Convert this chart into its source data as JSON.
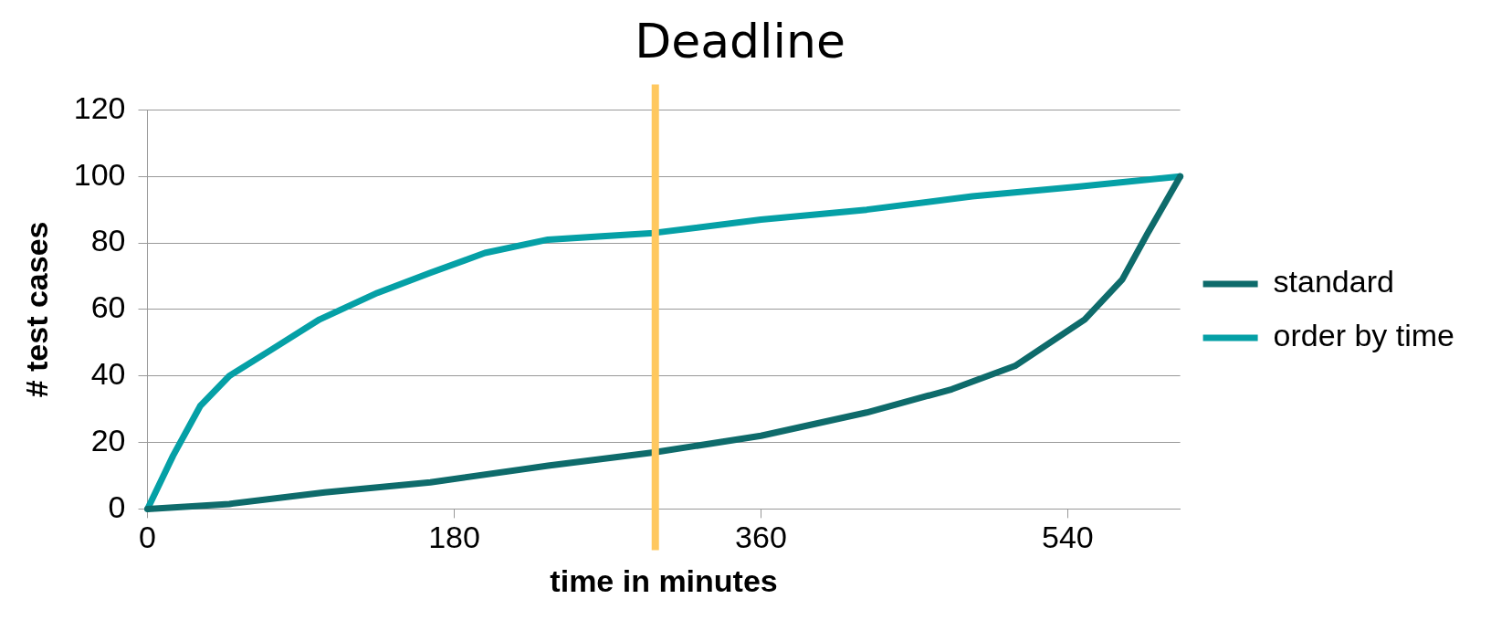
{
  "chart_data": {
    "type": "line",
    "title": "Deadline",
    "xlabel": "time in minutes",
    "ylabel": "# test cases",
    "xlim": [
      0,
      606
    ],
    "xticks": [
      0,
      180,
      360,
      540
    ],
    "ylim": [
      0,
      120
    ],
    "yticks": [
      0,
      20,
      40,
      60,
      80,
      100,
      120
    ],
    "grid": "y",
    "legend": "right",
    "marker": "none",
    "line_style": "solid",
    "series": [
      {
        "name": "standard",
        "color": "#0e6b6b",
        "x": [
          0,
          48,
          104,
          166,
          235,
          297,
          360,
          422,
          472,
          509,
          550,
          572,
          587,
          606
        ],
        "values": [
          0,
          1.5,
          5,
          8,
          13,
          17,
          22,
          29,
          36,
          43,
          57,
          69,
          83,
          100
        ]
      },
      {
        "name": "order by time",
        "color": "#05a0a6",
        "x": [
          0,
          15,
          31,
          48,
          73,
          101,
          135,
          166,
          198,
          235,
          297,
          360,
          422,
          484,
          547,
          606
        ],
        "values": [
          0,
          16,
          31,
          40,
          48,
          57,
          65,
          71,
          77,
          81,
          83,
          87,
          90,
          94,
          97,
          100
        ]
      }
    ],
    "ref_lines": [
      {
        "axis": "x",
        "value": 298,
        "color": "#ffc85f"
      }
    ]
  }
}
